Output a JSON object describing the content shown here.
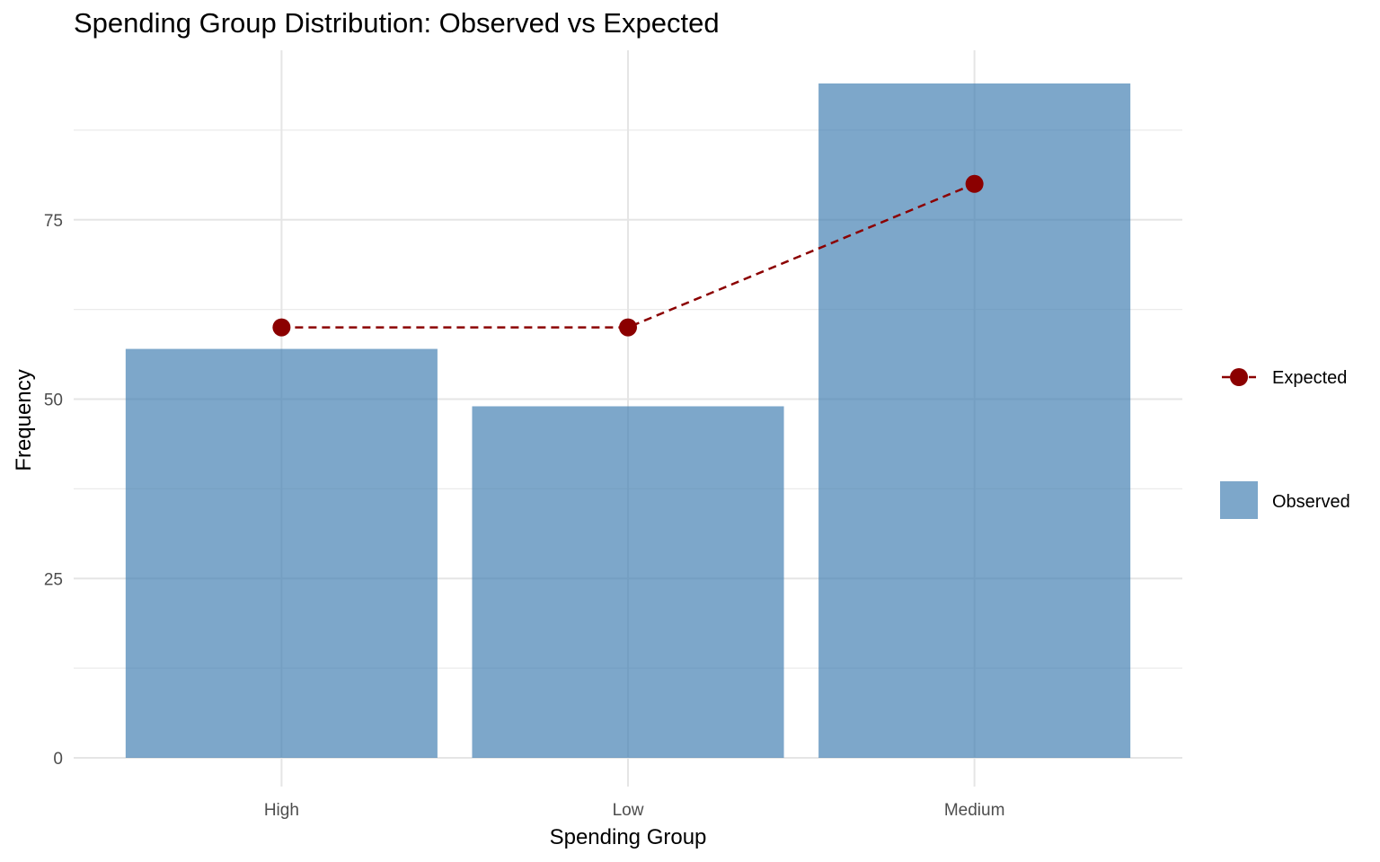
{
  "chart_data": {
    "type": "bar",
    "title": "Spending Group Distribution: Observed vs Expected",
    "xlabel": "Spending Group",
    "ylabel": "Frequency",
    "categories": [
      "High",
      "Low",
      "Medium"
    ],
    "series": [
      {
        "name": "Observed",
        "type": "bar",
        "values": [
          57,
          49,
          94
        ],
        "color": "#4682B4"
      },
      {
        "name": "Expected",
        "type": "line",
        "style": "dashed",
        "marker": "circle",
        "values": [
          60,
          60,
          80
        ],
        "color": "#8B0000"
      }
    ],
    "ylim": [
      0,
      98.7
    ],
    "yticks": [
      0,
      25,
      50,
      75
    ],
    "grid": true,
    "legend": {
      "placement": "right",
      "entries": [
        "Expected",
        "Observed"
      ]
    }
  }
}
